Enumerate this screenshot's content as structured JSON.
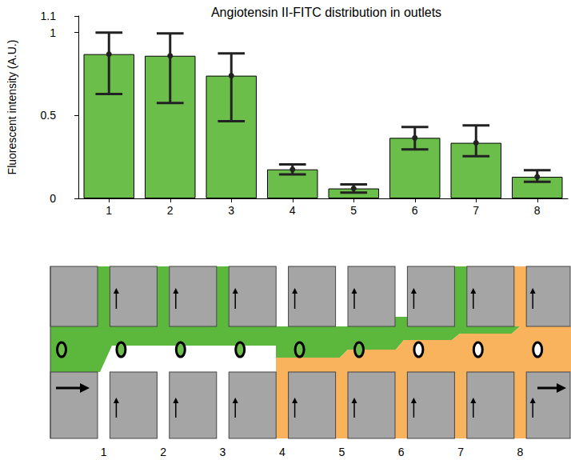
{
  "chart_data": {
    "type": "bar",
    "title": "Angiotensin II-FITC distribution in outlets",
    "y_label": "Fluorescent intensity (A.U.)",
    "categories": [
      "1",
      "2",
      "3",
      "4",
      "5",
      "6",
      "7",
      "8"
    ],
    "values": [
      0.87,
      0.86,
      0.74,
      0.175,
      0.06,
      0.365,
      0.335,
      0.13
    ],
    "error_bars": {
      "low": [
        0.63,
        0.575,
        0.465,
        0.145,
        0.035,
        0.295,
        0.255,
        0.1
      ],
      "high": [
        1.0,
        0.995,
        0.875,
        0.205,
        0.085,
        0.43,
        0.44,
        0.17
      ]
    },
    "color": "#6cbe4a",
    "ylim": [
      0,
      1.1
    ],
    "yticks": [
      0,
      0.5,
      1
    ],
    "grid": false
  }
}
